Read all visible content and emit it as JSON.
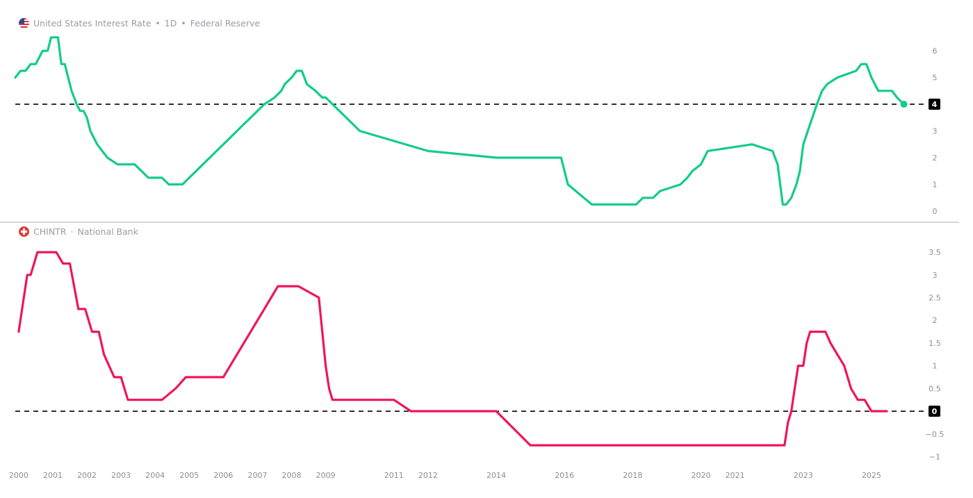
{
  "header_top": {
    "title": "United States Interest Rate",
    "interval": "1D",
    "source": "Federal Reserve",
    "flag_icon": "us-flag-icon"
  },
  "header_bottom": {
    "title": "CHINTR",
    "source": "National Bank",
    "flag_icon": "swiss-flag-icon"
  },
  "colors": {
    "us_line": "#12cc88",
    "ch_line": "#f0145a",
    "axis_text": "#8c8c96",
    "divider": "#c8c8cc",
    "ref_line": "#000000"
  },
  "x_ticks": [
    "2000",
    "2001",
    "2002",
    "2003",
    "2004",
    "2005",
    "2006",
    "2007",
    "2008",
    "2009",
    "2011",
    "2012",
    "2014",
    "2016",
    "2018",
    "2020",
    "2021",
    "2023",
    "2025"
  ],
  "chart_data": [
    {
      "type": "line",
      "series": [
        {
          "name": "United States Interest Rate",
          "x": [
            1999.9,
            2000.05,
            2000.2,
            2000.35,
            2000.5,
            2000.6,
            2000.7,
            2000.85,
            2000.95,
            2001.05,
            2001.15,
            2001.25,
            2001.35,
            2001.45,
            2001.55,
            2001.7,
            2001.8,
            2001.9,
            2002.0,
            2002.1,
            2002.3,
            2002.6,
            2002.9,
            2003.1,
            2003.4,
            2003.8,
            2004.2,
            2004.4,
            2004.6,
            2004.8,
            2005.0,
            2005.2,
            2005.4,
            2005.6,
            2005.8,
            2006.0,
            2006.2,
            2006.4,
            2006.6,
            2006.8,
            2007.0,
            2007.2,
            2007.5,
            2007.7,
            2007.8,
            2008.0,
            2008.15,
            2008.3,
            2008.45,
            2008.7,
            2008.9,
            2009.0,
            2010.0,
            2012.0,
            2014.0,
            2015.9,
            2016.1,
            2016.8,
            2017.1,
            2017.4,
            2017.8,
            2018.1,
            2018.3,
            2018.6,
            2018.8,
            2019.4,
            2019.6,
            2019.75,
            2020.0,
            2020.1,
            2020.2,
            2021.5,
            2022.1,
            2022.25,
            2022.4,
            2022.5,
            2022.65,
            2022.8,
            2022.9,
            2023.0,
            2023.2,
            2023.4,
            2023.55,
            2023.7,
            2024.0,
            2024.55,
            2024.7,
            2024.85,
            2025.0,
            2025.2,
            2025.6,
            2025.75,
            2025.95
          ],
          "y": [
            5.0,
            5.25,
            5.25,
            5.5,
            5.5,
            5.75,
            6.0,
            6.0,
            6.5,
            6.5,
            6.5,
            5.5,
            5.5,
            5.0,
            4.5,
            4.0,
            3.75,
            3.75,
            3.5,
            3.0,
            2.5,
            2.0,
            1.75,
            1.75,
            1.75,
            1.25,
            1.25,
            1.0,
            1.0,
            1.0,
            1.25,
            1.5,
            1.75,
            2.0,
            2.25,
            2.5,
            2.75,
            3.0,
            3.25,
            3.5,
            3.75,
            4.0,
            4.25,
            4.5,
            4.75,
            5.0,
            5.25,
            5.25,
            4.75,
            4.5,
            4.25,
            4.25,
            3.0,
            2.25,
            2.0,
            2.0,
            1.0,
            0.25,
            0.25,
            0.25,
            0.25,
            0.25,
            0.5,
            0.5,
            0.75,
            1.0,
            1.25,
            1.5,
            1.75,
            2.0,
            2.25,
            2.5,
            2.25,
            1.75,
            0.25,
            0.25,
            0.5,
            1.0,
            1.5,
            2.5,
            3.25,
            4.0,
            4.5,
            4.75,
            5.0,
            5.25,
            5.5,
            5.5,
            5.0,
            4.5,
            4.5,
            4.25,
            4.0
          ],
          "last_value": 4
        }
      ],
      "y_ticks": [
        "0",
        "1",
        "2",
        "3",
        "4",
        "5",
        "6"
      ],
      "ylim": [
        0,
        6.6
      ],
      "ref_line": 4,
      "ref_label": "4"
    },
    {
      "type": "line",
      "series": [
        {
          "name": "CHINTR",
          "x": [
            2000.0,
            2000.1,
            2000.25,
            2000.35,
            2000.55,
            2000.75,
            2001.1,
            2001.3,
            2001.5,
            2001.75,
            2001.95,
            2002.15,
            2002.35,
            2002.5,
            2002.8,
            2003.0,
            2003.2,
            2003.6,
            2004.2,
            2004.6,
            2004.9,
            2005.2,
            2005.6,
            2006.0,
            2006.2,
            2006.4,
            2006.6,
            2006.8,
            2007.0,
            2007.2,
            2007.4,
            2007.6,
            2007.8,
            2008.0,
            2008.2,
            2008.8,
            2009.0,
            2009.1,
            2009.2,
            2009.5,
            2010.0,
            2011.0,
            2011.5,
            2012.0,
            2013.0,
            2014.0,
            2015.0,
            2016.0,
            2017.0,
            2018.0,
            2019.0,
            2020.0,
            2021.0,
            2022.0,
            2022.45,
            2022.55,
            2022.65,
            2022.75,
            2022.85,
            2023.0,
            2023.1,
            2023.2,
            2023.35,
            2023.5,
            2023.65,
            2023.8,
            2024.0,
            2024.2,
            2024.4,
            2024.6,
            2024.8,
            2025.0,
            2025.2,
            2025.45
          ],
          "y": [
            1.75,
            2.25,
            3.0,
            3.0,
            3.5,
            3.5,
            3.5,
            3.25,
            3.25,
            2.25,
            2.25,
            1.75,
            1.75,
            1.25,
            0.75,
            0.75,
            0.25,
            0.25,
            0.25,
            0.5,
            0.75,
            0.75,
            0.75,
            0.75,
            1.0,
            1.25,
            1.5,
            1.75,
            2.0,
            2.25,
            2.5,
            2.75,
            2.75,
            2.75,
            2.75,
            2.5,
            1.0,
            0.5,
            0.25,
            0.25,
            0.25,
            0.25,
            0.0,
            0.0,
            0.0,
            0.0,
            -0.75,
            -0.75,
            -0.75,
            -0.75,
            -0.75,
            -0.75,
            -0.75,
            -0.75,
            -0.75,
            -0.25,
            0.0,
            0.5,
            1.0,
            1.0,
            1.5,
            1.75,
            1.75,
            1.75,
            1.75,
            1.5,
            1.25,
            1.0,
            0.5,
            0.25,
            0.25,
            0.0,
            0.0,
            0.0
          ],
          "last_value": 0
        }
      ],
      "y_ticks": [
        "−1",
        "−0.5",
        "0",
        "0.5",
        "1",
        "1.5",
        "2",
        "2.5",
        "3",
        "3.5"
      ],
      "ylim": [
        -1.1,
        3.7
      ],
      "ref_line": 0,
      "ref_label": "0"
    }
  ]
}
